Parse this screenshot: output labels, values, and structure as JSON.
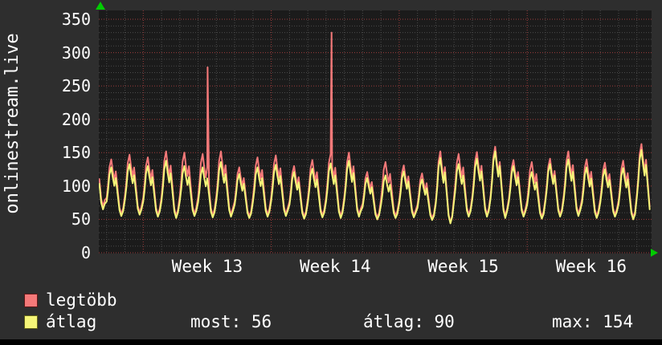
{
  "title": "onlinestream.live",
  "stats_row": {
    "most": "most: 56",
    "atlag": "átlag: 90",
    "max": "max: 154"
  },
  "colors": {
    "background": "#2e2e2e",
    "plot_background": "#1b1b1b",
    "grid_minor": "#4b4b4b",
    "grid_major": "#9e3c3c",
    "max_line": "#f57979",
    "avg_line": "#f5f578",
    "axis_arrow": "#00cc00",
    "text": "#ffffff"
  },
  "chart_data": {
    "type": "line",
    "title": "onlinestream.live",
    "ylim": [
      0,
      350
    ],
    "y_ticks": [
      0,
      50,
      100,
      150,
      200,
      250,
      300,
      350
    ],
    "x_tick_labels": [
      "Week 13",
      "Week 14",
      "Week 15",
      "Week 16"
    ],
    "grid": {
      "minor_y_step": 10,
      "major_y_step": 50,
      "minor_x_step_days": 1,
      "major_x_step_days": 7,
      "style": "dotted"
    },
    "legend_position": "bottom-left",
    "series": [
      {
        "name": "legtöbb",
        "color": "#f57979"
      },
      {
        "name": "átlag",
        "color": "#f5f578",
        "stats": {
          "most": 56,
          "atlag": 90,
          "max": 154
        }
      }
    ],
    "week_labels": [
      {
        "label": "Week 13",
        "center_day": 3.5
      },
      {
        "label": "Week 14",
        "center_day": 10.5
      },
      {
        "label": "Week 15",
        "center_day": 17.5
      },
      {
        "label": "Week 16",
        "center_day": 24.5
      }
    ],
    "week_lines_days": [
      0,
      7,
      14,
      21
    ],
    "x_range_days": [
      -2.43,
      27.78
    ],
    "intraday_profile": [
      [
        0,
        0.3
      ],
      [
        0.08,
        0.55
      ],
      [
        0.15,
        0.85
      ],
      [
        0.25,
        1
      ],
      [
        0.33,
        0.8
      ],
      [
        0.42,
        0.62
      ],
      [
        0.5,
        0.78
      ],
      [
        0.6,
        0.45
      ],
      [
        0.7,
        0.12
      ],
      [
        0.8,
        0
      ],
      [
        0.9,
        0.1
      ]
    ],
    "days": [
      {
        "d": -3,
        "max_peak": 160,
        "max_trough": 70,
        "avg_peak": 150,
        "avg_trough": 65
      },
      {
        "d": -2,
        "max_peak": 140,
        "max_trough": 58,
        "avg_peak": 128,
        "avg_trough": 55
      },
      {
        "d": -1,
        "max_peak": 147,
        "max_trough": 60,
        "avg_peak": 133,
        "avg_trough": 57
      },
      {
        "d": 0,
        "max_peak": 143,
        "max_trough": 57,
        "avg_peak": 130,
        "avg_trough": 54
      },
      {
        "d": 1,
        "max_peak": 152,
        "max_trough": 55,
        "avg_peak": 138,
        "avg_trough": 52
      },
      {
        "d": 2,
        "max_peak": 150,
        "max_trough": 58,
        "avg_peak": 130,
        "avg_trough": 55
      },
      {
        "d": 3,
        "max_peak": 148,
        "max_trough": 56,
        "avg_peak": 128,
        "avg_trough": 53
      },
      {
        "d": 4,
        "max_peak": 152,
        "max_trough": 57,
        "avg_peak": 136,
        "avg_trough": 54
      },
      {
        "d": 5,
        "max_peak": 128,
        "max_trough": 55,
        "avg_peak": 118,
        "avg_trough": 52
      },
      {
        "d": 6,
        "max_peak": 143,
        "max_trough": 57,
        "avg_peak": 128,
        "avg_trough": 54
      },
      {
        "d": 7,
        "max_peak": 146,
        "max_trough": 58,
        "avg_peak": 132,
        "avg_trough": 55
      },
      {
        "d": 8,
        "max_peak": 130,
        "max_trough": 54,
        "avg_peak": 121,
        "avg_trough": 51
      },
      {
        "d": 9,
        "max_peak": 139,
        "max_trough": 56,
        "avg_peak": 126,
        "avg_trough": 53
      },
      {
        "d": 10,
        "max_peak": 148,
        "max_trough": 55,
        "avg_peak": 134,
        "avg_trough": 52
      },
      {
        "d": 11,
        "max_peak": 150,
        "max_trough": 57,
        "avg_peak": 138,
        "avg_trough": 54
      },
      {
        "d": 12,
        "max_peak": 121,
        "max_trough": 53,
        "avg_peak": 112,
        "avg_trough": 50
      },
      {
        "d": 13,
        "max_peak": 136,
        "max_trough": 55,
        "avg_peak": 116,
        "avg_trough": 52
      },
      {
        "d": 14,
        "max_peak": 131,
        "max_trough": 56,
        "avg_peak": 122,
        "avg_trough": 53
      },
      {
        "d": 15,
        "max_peak": 119,
        "max_trough": 52,
        "avg_peak": 110,
        "avg_trough": 49
      },
      {
        "d": 16,
        "max_peak": 152,
        "max_trough": 45,
        "avg_peak": 142,
        "avg_trough": 44
      },
      {
        "d": 17,
        "max_peak": 148,
        "max_trough": 57,
        "avg_peak": 133,
        "avg_trough": 54
      },
      {
        "d": 18,
        "max_peak": 151,
        "max_trough": 57,
        "avg_peak": 141,
        "avg_trough": 54
      },
      {
        "d": 19,
        "max_peak": 159,
        "max_trough": 55,
        "avg_peak": 152,
        "avg_trough": 52
      },
      {
        "d": 20,
        "max_peak": 139,
        "max_trough": 57,
        "avg_peak": 130,
        "avg_trough": 54
      },
      {
        "d": 21,
        "max_peak": 136,
        "max_trough": 54,
        "avg_peak": 121,
        "avg_trough": 51
      },
      {
        "d": 22,
        "max_peak": 141,
        "max_trough": 57,
        "avg_peak": 133,
        "avg_trough": 54
      },
      {
        "d": 23,
        "max_peak": 152,
        "max_trough": 58,
        "avg_peak": 140,
        "avg_trough": 55
      },
      {
        "d": 24,
        "max_peak": 140,
        "max_trough": 55,
        "avg_peak": 128,
        "avg_trough": 52
      },
      {
        "d": 25,
        "max_peak": 135,
        "max_trough": 57,
        "avg_peak": 125,
        "avg_trough": 54
      },
      {
        "d": 26,
        "max_peak": 138,
        "max_trough": 53,
        "avg_peak": 127,
        "avg_trough": 50
      },
      {
        "d": 27,
        "max_peak": 163,
        "max_trough": 56,
        "avg_peak": 154,
        "avg_trough": 53
      }
    ],
    "spikes": [
      {
        "day": 3.52,
        "value": 278
      },
      {
        "day": 10.3,
        "value": 330
      }
    ]
  }
}
